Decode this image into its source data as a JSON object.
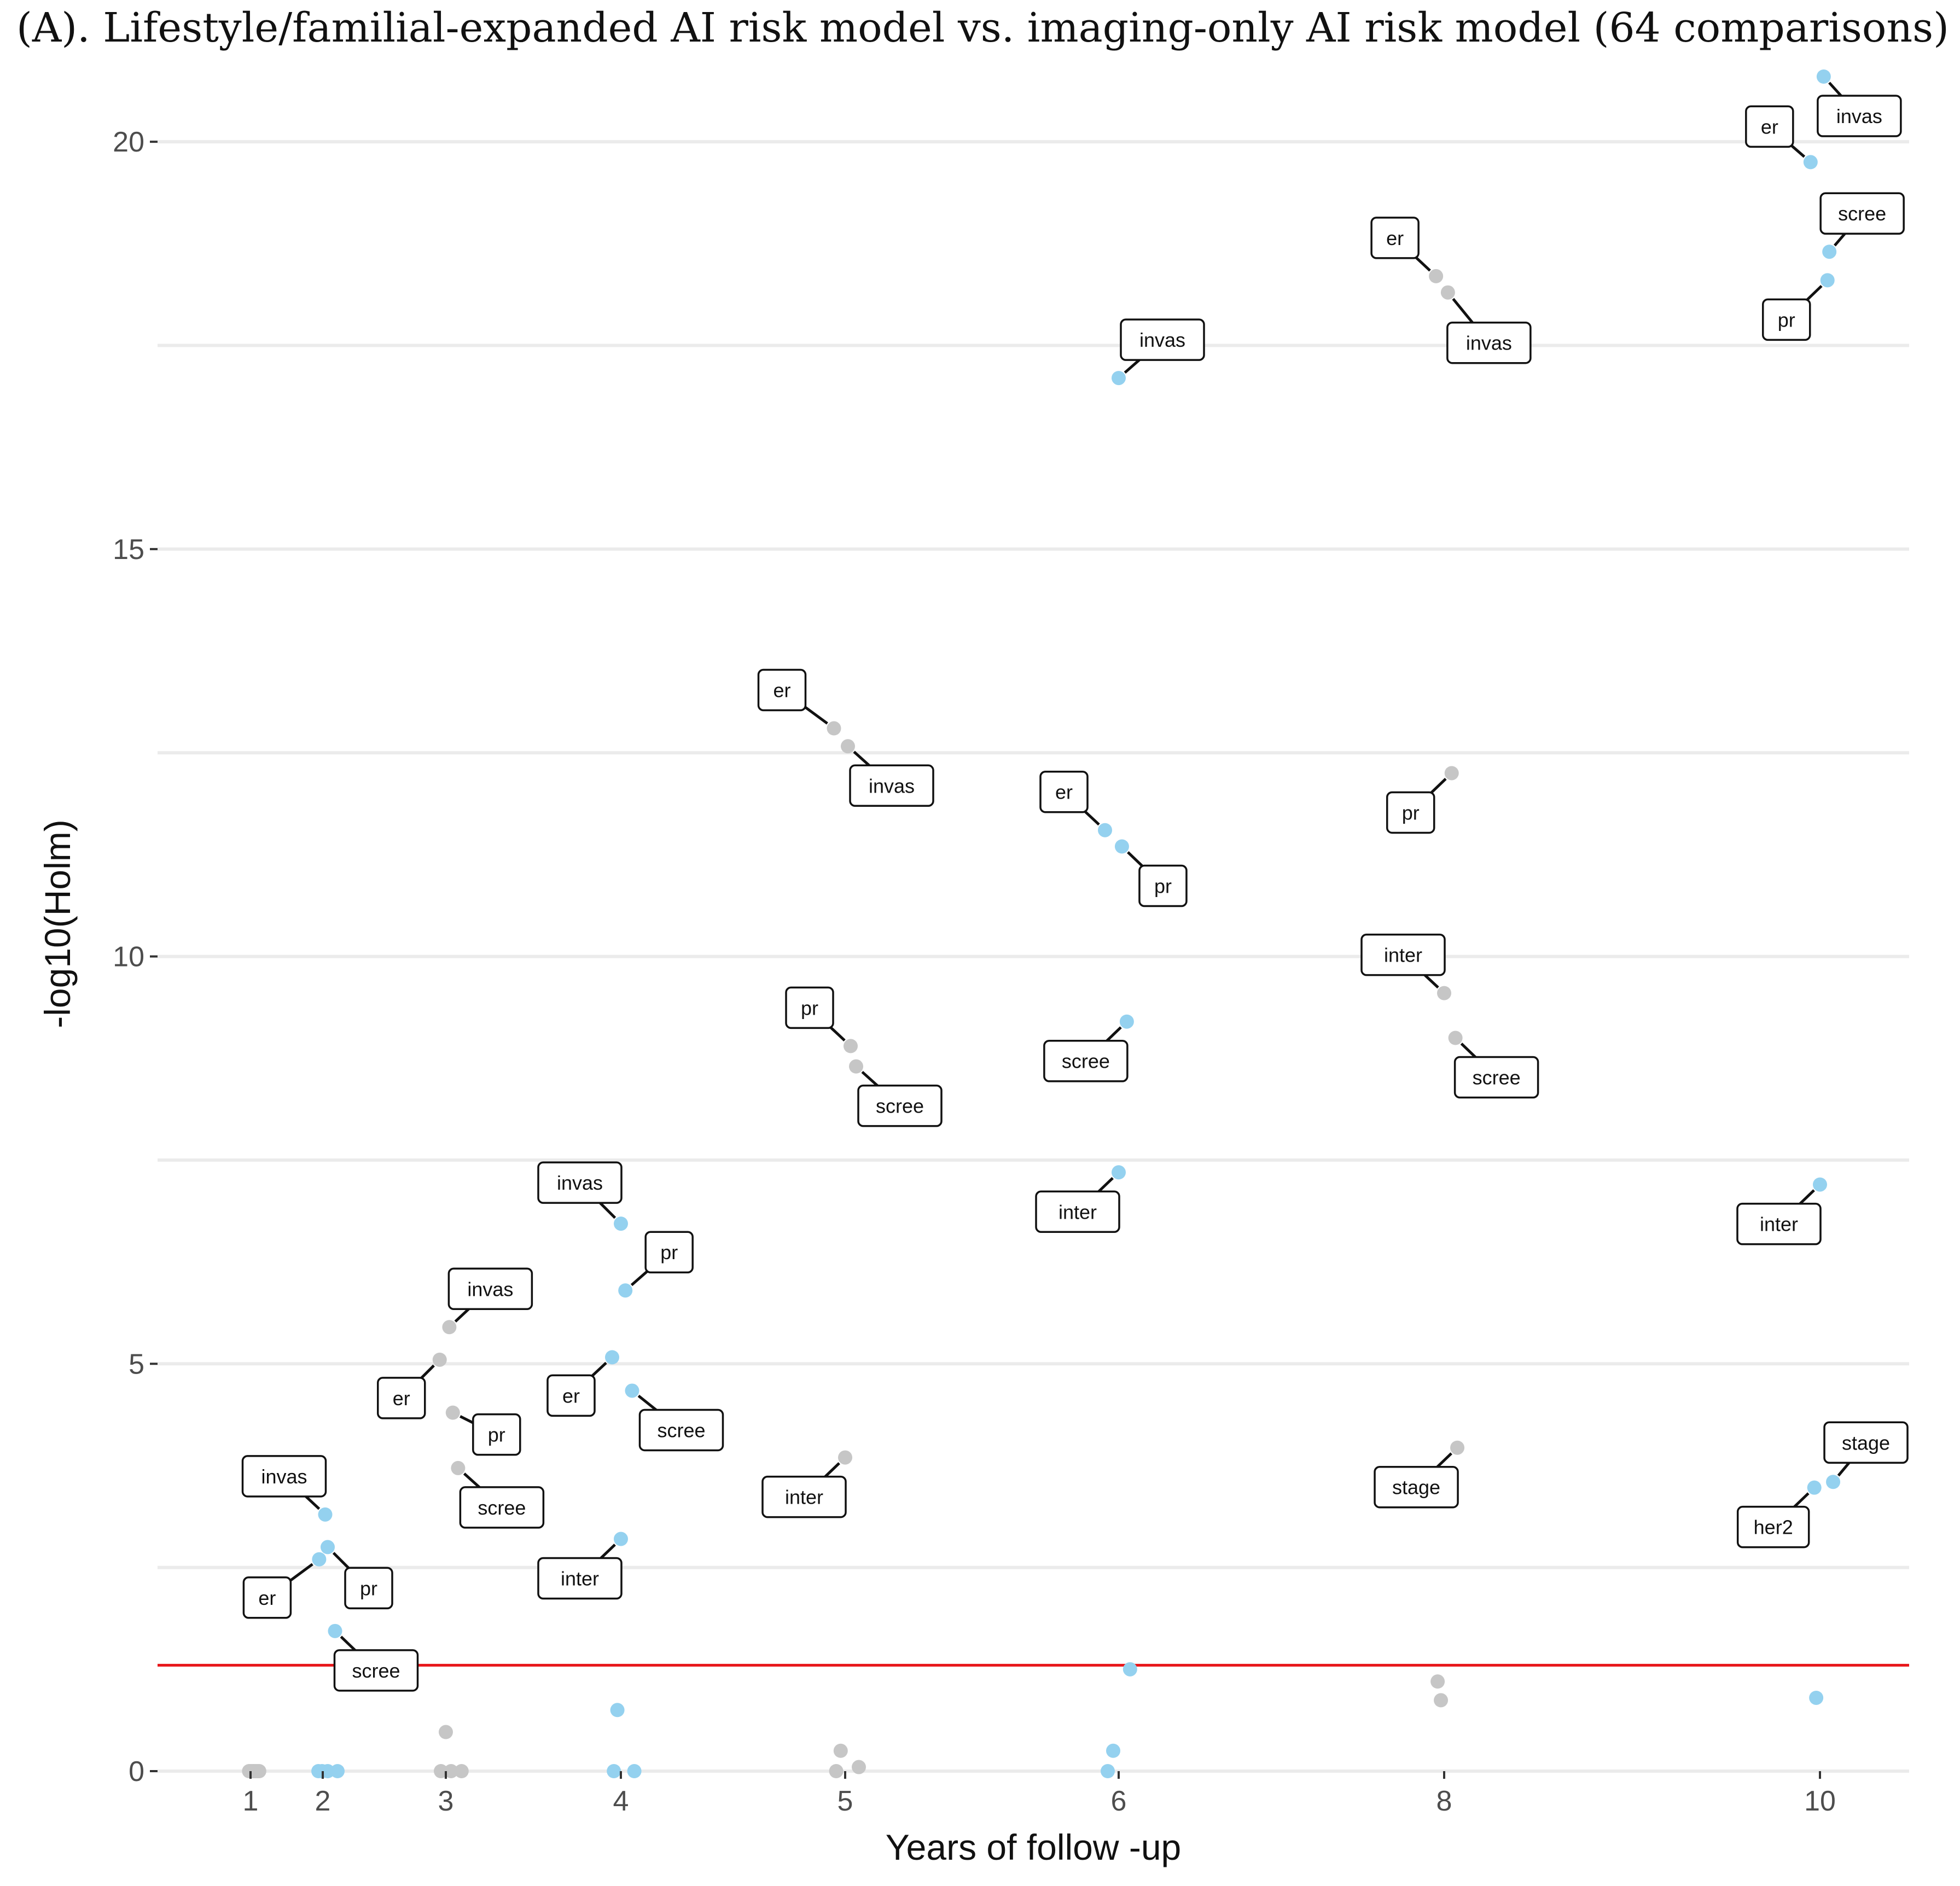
{
  "chart_data": {
    "type": "scatter",
    "title": "(A). Lifestyle/familial-expanded AI risk model vs. imaging-only AI risk model (64 comparisons)",
    "xlabel": "Years of follow -up",
    "ylabel": "-log10(Holm)",
    "x_ticks": [
      "1",
      "2",
      "3",
      "4",
      "5",
      "6",
      "8",
      "10"
    ],
    "y_ticks": [
      0,
      5,
      10,
      15,
      20
    ],
    "ylim": [
      0,
      20.8
    ],
    "threshold": {
      "value": 1.3,
      "color": "#e8161a"
    },
    "colors": {
      "blue": "#94d1ef",
      "gray": "#c6c6c6"
    },
    "points": [
      {
        "x": 0.98,
        "y": 0,
        "c": "gray"
      },
      {
        "x": 1.0,
        "y": 0,
        "c": "gray"
      },
      {
        "x": 1.02,
        "y": 0,
        "c": "gray"
      },
      {
        "x": 1.04,
        "y": 0,
        "c": "gray"
      },
      {
        "x": 1.06,
        "y": 0,
        "c": "gray"
      },
      {
        "x": 1.08,
        "y": 0,
        "c": "gray"
      },
      {
        "x": 1.1,
        "y": 0,
        "c": "gray"
      },
      {
        "x": 1.12,
        "y": 0,
        "c": "gray"
      },
      {
        "x": 1.95,
        "y": 2.6,
        "c": "blue",
        "label": "er"
      },
      {
        "x": 2.02,
        "y": 3.15,
        "c": "blue",
        "label": "invas"
      },
      {
        "x": 2.04,
        "y": 2.75,
        "c": "blue",
        "label": "pr"
      },
      {
        "x": 2.1,
        "y": 1.72,
        "c": "blue",
        "label": "scree"
      },
      {
        "x": 1.94,
        "y": 0,
        "c": "blue"
      },
      {
        "x": 1.99,
        "y": 0,
        "c": "blue"
      },
      {
        "x": 2.04,
        "y": 0,
        "c": "blue"
      },
      {
        "x": 2.12,
        "y": 0,
        "c": "blue"
      },
      {
        "x": 2.95,
        "y": 5.05,
        "c": "gray",
        "label": "er"
      },
      {
        "x": 3.02,
        "y": 5.45,
        "c": "gray",
        "label": "invas"
      },
      {
        "x": 3.04,
        "y": 4.4,
        "c": "gray",
        "label": "pr"
      },
      {
        "x": 3.07,
        "y": 3.72,
        "c": "gray",
        "label": "scree"
      },
      {
        "x": 3.0,
        "y": 0.48,
        "c": "gray"
      },
      {
        "x": 2.96,
        "y": 0,
        "c": "gray"
      },
      {
        "x": 3.03,
        "y": 0,
        "c": "gray"
      },
      {
        "x": 3.09,
        "y": 0,
        "c": "gray"
      },
      {
        "x": 3.95,
        "y": 5.08,
        "c": "blue",
        "label": "er"
      },
      {
        "x": 4.0,
        "y": 6.72,
        "c": "blue",
        "label": "invas"
      },
      {
        "x": 4.02,
        "y": 5.9,
        "c": "blue",
        "label": "pr"
      },
      {
        "x": 4.05,
        "y": 4.67,
        "c": "blue",
        "label": "scree"
      },
      {
        "x": 4.0,
        "y": 2.85,
        "c": "blue",
        "label": "inter"
      },
      {
        "x": 3.98,
        "y": 0.75,
        "c": "blue"
      },
      {
        "x": 3.96,
        "y": 0,
        "c": "blue"
      },
      {
        "x": 4.06,
        "y": 0,
        "c": "blue"
      },
      {
        "x": 4.95,
        "y": 12.8,
        "c": "gray",
        "label": "er"
      },
      {
        "x": 5.01,
        "y": 12.58,
        "c": "gray",
        "label": "invas"
      },
      {
        "x": 5.02,
        "y": 8.9,
        "c": "gray",
        "label": "pr"
      },
      {
        "x": 5.04,
        "y": 8.65,
        "c": "gray",
        "label": "scree"
      },
      {
        "x": 5.0,
        "y": 3.85,
        "c": "gray",
        "label": "inter"
      },
      {
        "x": 4.98,
        "y": 0.25,
        "c": "gray"
      },
      {
        "x": 4.96,
        "y": 0,
        "c": "gray"
      },
      {
        "x": 5.05,
        "y": 0.05,
        "c": "gray"
      },
      {
        "x": 5.95,
        "y": 11.55,
        "c": "blue",
        "label": "er"
      },
      {
        "x": 6.0,
        "y": 17.1,
        "c": "blue",
        "label": "invas"
      },
      {
        "x": 6.02,
        "y": 11.35,
        "c": "blue",
        "label": "pr"
      },
      {
        "x": 6.05,
        "y": 9.2,
        "c": "blue",
        "label": "scree"
      },
      {
        "x": 6.0,
        "y": 7.35,
        "c": "blue",
        "label": "inter"
      },
      {
        "x": 6.07,
        "y": 1.25,
        "c": "blue"
      },
      {
        "x": 5.98,
        "y": 0.25,
        "c": "blue"
      },
      {
        "x": 5.96,
        "y": 0,
        "c": "blue"
      },
      {
        "x": 7.95,
        "y": 18.35,
        "c": "gray",
        "label": "er"
      },
      {
        "x": 8.02,
        "y": 18.15,
        "c": "gray",
        "label": "invas"
      },
      {
        "x": 8.04,
        "y": 12.25,
        "c": "gray",
        "label": "pr"
      },
      {
        "x": 8.0,
        "y": 9.55,
        "c": "gray",
        "label": "inter"
      },
      {
        "x": 8.06,
        "y": 9.0,
        "c": "gray",
        "label": "scree"
      },
      {
        "x": 8.07,
        "y": 3.97,
        "c": "gray",
        "label": "stage"
      },
      {
        "x": 7.96,
        "y": 1.1,
        "c": "gray"
      },
      {
        "x": 7.98,
        "y": 0.87,
        "c": "gray"
      },
      {
        "x": 9.95,
        "y": 19.75,
        "c": "blue",
        "label": "er"
      },
      {
        "x": 10.02,
        "y": 20.8,
        "c": "blue",
        "label": "invas"
      },
      {
        "x": 10.05,
        "y": 18.65,
        "c": "blue",
        "label": "scree"
      },
      {
        "x": 10.04,
        "y": 18.3,
        "c": "blue",
        "label": "pr"
      },
      {
        "x": 10.0,
        "y": 7.2,
        "c": "blue",
        "label": "inter"
      },
      {
        "x": 10.07,
        "y": 3.55,
        "c": "blue",
        "label": "stage"
      },
      {
        "x": 9.97,
        "y": 3.48,
        "c": "blue",
        "label": "her2"
      },
      {
        "x": 9.98,
        "y": 0.9,
        "c": "blue"
      }
    ]
  }
}
